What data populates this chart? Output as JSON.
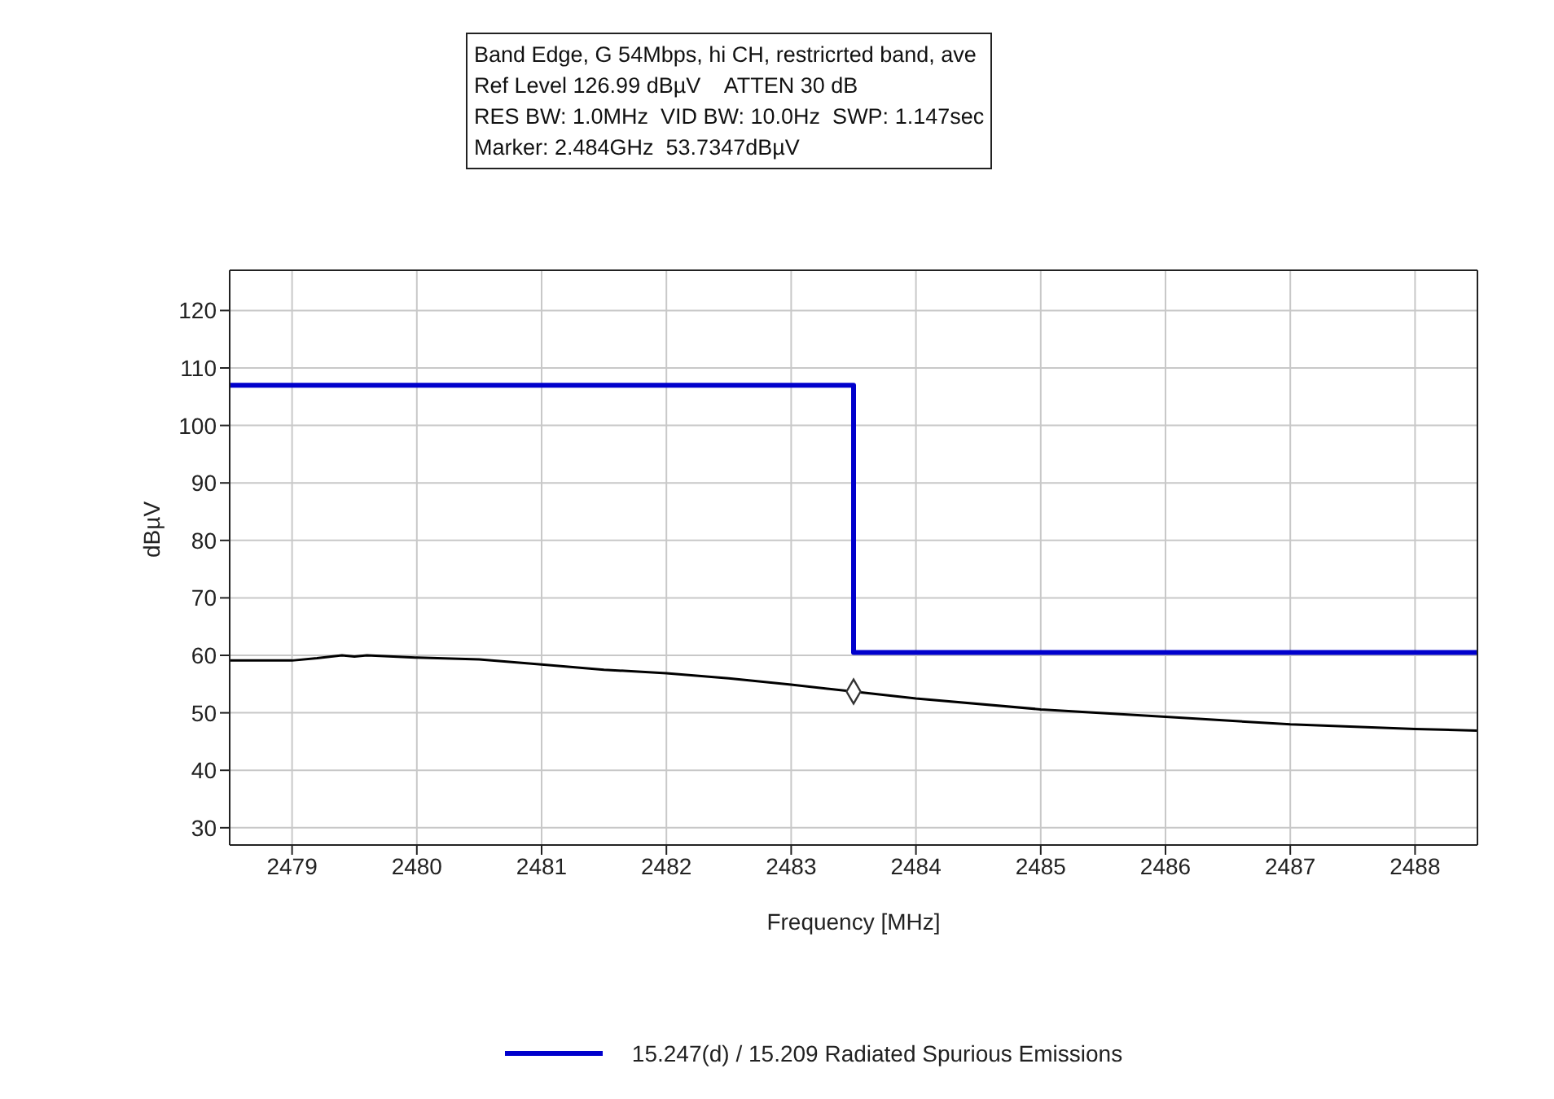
{
  "chart_data": {
    "type": "line",
    "annotations": [
      "Band Edge, G 54Mbps, hi CH, restricrted band, ave",
      "Ref Level 126.99 dBµV    ATTEN 30 dB",
      "RES BW: 1.0MHz  VID BW: 10.0Hz  SWP: 1.147sec",
      "Marker: 2.484GHz  53.7347dBµV"
    ],
    "xlabel": "Frequency [MHz]",
    "ylabel": "dBµV",
    "series": [
      {
        "color": "#000000",
        "x": [
          2478.5,
          2479,
          2479.2,
          2479.4,
          2479.5,
          2479.6,
          2480,
          2480.5,
          2481,
          2481.5,
          2482,
          2482.5,
          2483,
          2483.5,
          2484,
          2485,
          2486,
          2487,
          2488,
          2488.5
        ],
        "values": [
          59.1,
          59.1,
          59.5,
          60,
          59.8,
          60,
          59.6,
          59.3,
          58.4,
          57.5,
          56.9,
          56,
          54.9,
          53.7,
          52.5,
          50.6,
          49.3,
          48,
          47.2,
          46.9
        ]
      },
      {
        "type": "step",
        "name": "15.247(d) / 15.209 Radiated Spurious Emissions",
        "color": "#0000cc",
        "x": [
          2478.5,
          2483.5,
          2488.5
        ],
        "values": [
          107,
          60.5,
          60.5
        ]
      },
      {
        "type": "scatter",
        "color": "#333333",
        "marker": "diamond",
        "x": [
          2483.5
        ],
        "values": [
          53.7
        ]
      }
    ],
    "xlim": [
      2478.5,
      2488.5
    ],
    "xticks": [
      2479,
      2480,
      2481,
      2482,
      2483,
      2484,
      2485,
      2486,
      2487,
      2488
    ],
    "ylim": [
      27,
      127
    ],
    "yticks": [
      30,
      40,
      50,
      60,
      70,
      80,
      90,
      100,
      110,
      120
    ],
    "grid": true,
    "legend": "bottom"
  }
}
